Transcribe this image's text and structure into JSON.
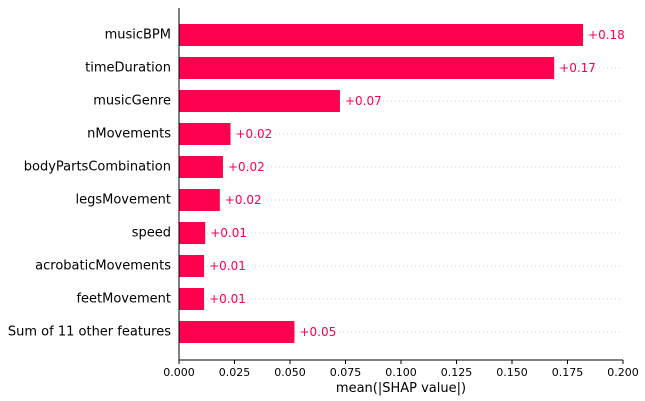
{
  "chart_data": {
    "type": "bar",
    "orientation": "horizontal",
    "title": "",
    "xlabel": "mean(|SHAP value|)",
    "ylabel": "",
    "categories": [
      "musicBPM",
      "timeDuration",
      "musicGenre",
      "nMovements",
      "bodyPartsCombination",
      "legsMovement",
      "speed",
      "acrobaticMovements",
      "feetMovement",
      "Sum of 11 other features"
    ],
    "values": [
      0.182,
      0.169,
      0.0725,
      0.0232,
      0.0198,
      0.0184,
      0.0118,
      0.0113,
      0.0113,
      0.052
    ],
    "value_labels": [
      "+0.18",
      "+0.17",
      "+0.07",
      "+0.02",
      "+0.02",
      "+0.02",
      "+0.01",
      "+0.01",
      "+0.01",
      "+0.05"
    ],
    "xlim": [
      0,
      0.2
    ],
    "xticks": [
      0,
      0.025,
      0.05,
      0.075,
      0.1,
      0.125,
      0.15,
      0.175,
      0.2
    ],
    "xtick_labels": [
      "0.000",
      "0.025",
      "0.050",
      "0.075",
      "0.100",
      "0.125",
      "0.150",
      "0.175",
      "0.200"
    ],
    "bar_color": "#ff0051",
    "label_color": "#ff0051",
    "grid": "dotted horizontal guide lines per bar"
  }
}
